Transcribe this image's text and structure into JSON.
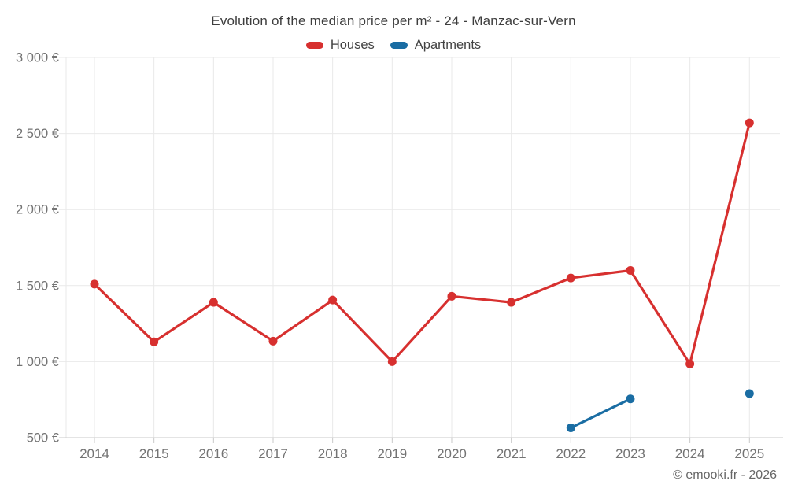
{
  "chart_data": {
    "type": "line",
    "title": "Evolution of the median price per m² - 24 - Manzac-sur-Vern",
    "x": [
      "2014",
      "2015",
      "2016",
      "2017",
      "2018",
      "2019",
      "2020",
      "2021",
      "2022",
      "2023",
      "2024",
      "2025"
    ],
    "series": [
      {
        "name": "Houses",
        "color": "#d7302f",
        "values": [
          1510,
          1130,
          1390,
          1135,
          1405,
          1000,
          1430,
          1390,
          1550,
          1600,
          985,
          2570
        ]
      },
      {
        "name": "Apartments",
        "color": "#1a6da3",
        "values": [
          null,
          null,
          null,
          null,
          null,
          null,
          null,
          null,
          565,
          755,
          null,
          790
        ]
      }
    ],
    "ylim": [
      500,
      3000
    ],
    "y_ticks": [
      500,
      1000,
      1500,
      2000,
      2500,
      3000
    ],
    "y_tick_labels": [
      "500 €",
      "1 000 €",
      "1 500 €",
      "2 000 €",
      "2 500 €",
      "3 000 €"
    ],
    "grid": true,
    "legend_position": "top",
    "xlabel": "",
    "ylabel": "",
    "colors": {
      "grid": "#e9e9e9",
      "axis": "#c9c9c9",
      "tick_text": "#737373",
      "title_text": "#3e3e3e"
    }
  },
  "footer": {
    "copyright": "© emooki.fr - 2026"
  }
}
